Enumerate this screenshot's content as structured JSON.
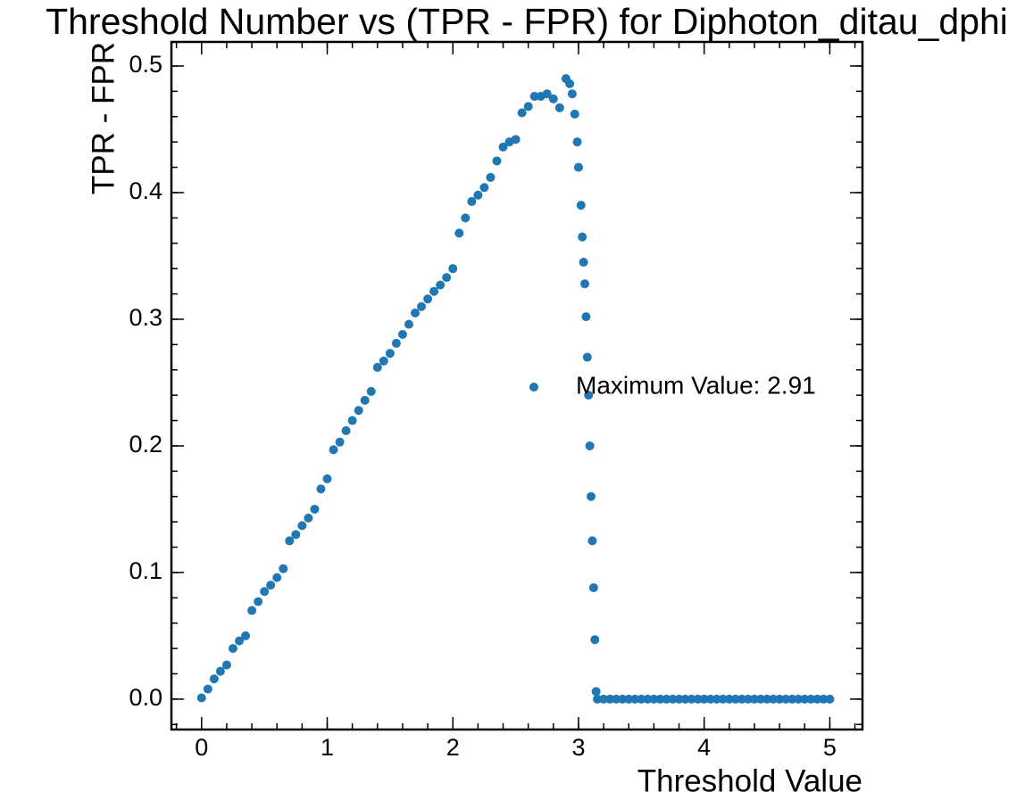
{
  "chart_data": {
    "type": "scatter",
    "title": "Threshold Number vs (TPR - FPR) for Diphoton_ditau_dphi",
    "x_label": "Threshold Value",
    "y_label": "TPR - FPR",
    "x": [
      0,
      0.05,
      0.1,
      0.15,
      0.2,
      0.25,
      0.3,
      0.35,
      0.4,
      0.45,
      0.5,
      0.55,
      0.6,
      0.65,
      0.7,
      0.75,
      0.8,
      0.85,
      0.9,
      0.95,
      1.0,
      1.05,
      1.1,
      1.15,
      1.2,
      1.25,
      1.3,
      1.35,
      1.4,
      1.45,
      1.5,
      1.55,
      1.6,
      1.65,
      1.7,
      1.75,
      1.8,
      1.85,
      1.9,
      1.95,
      2.0,
      2.05,
      2.1,
      2.15,
      2.2,
      2.25,
      2.3,
      2.35,
      2.4,
      2.45,
      2.5,
      2.55,
      2.6,
      2.65,
      2.7,
      2.75,
      2.8,
      2.85,
      2.9,
      2.93,
      2.95,
      2.97,
      2.99,
      3.0,
      3.02,
      3.03,
      3.04,
      3.05,
      3.06,
      3.07,
      3.08,
      3.09,
      3.1,
      3.11,
      3.12,
      3.13,
      3.14,
      3.15,
      3.2,
      3.25,
      3.3,
      3.35,
      3.4,
      3.45,
      3.5,
      3.55,
      3.6,
      3.65,
      3.7,
      3.75,
      3.8,
      3.85,
      3.9,
      3.95,
      4.0,
      4.05,
      4.1,
      4.15,
      4.2,
      4.25,
      4.3,
      4.35,
      4.4,
      4.45,
      4.5,
      4.55,
      4.6,
      4.65,
      4.7,
      4.75,
      4.8,
      4.85,
      4.9,
      4.95,
      5.0
    ],
    "series": [
      {
        "name": "Maximum Value: 2.91",
        "color": "#1f77b4",
        "values": [
          0.001,
          0.008,
          0.016,
          0.022,
          0.027,
          0.04,
          0.046,
          0.05,
          0.07,
          0.077,
          0.085,
          0.09,
          0.096,
          0.103,
          0.125,
          0.13,
          0.137,
          0.143,
          0.15,
          0.166,
          0.174,
          0.197,
          0.203,
          0.212,
          0.22,
          0.228,
          0.236,
          0.243,
          0.262,
          0.267,
          0.273,
          0.281,
          0.288,
          0.296,
          0.305,
          0.31,
          0.316,
          0.322,
          0.327,
          0.333,
          0.34,
          0.368,
          0.38,
          0.393,
          0.398,
          0.404,
          0.412,
          0.425,
          0.436,
          0.44,
          0.442,
          0.463,
          0.468,
          0.476,
          0.476,
          0.478,
          0.474,
          0.467,
          0.49,
          0.486,
          0.478,
          0.462,
          0.44,
          0.42,
          0.39,
          0.365,
          0.345,
          0.328,
          0.302,
          0.27,
          0.24,
          0.2,
          0.16,
          0.125,
          0.088,
          0.047,
          0.006,
          0,
          0,
          0,
          0,
          0,
          0,
          0,
          0,
          0,
          0,
          0,
          0,
          0,
          0,
          0,
          0,
          0,
          0,
          0,
          0,
          0,
          0,
          0,
          0,
          0,
          0,
          0,
          0,
          0,
          0,
          0,
          0,
          0,
          0,
          0,
          0,
          0,
          0
        ]
      }
    ],
    "xlim": [
      -0.24,
      5.26
    ],
    "ylim": [
      -0.024,
      0.519
    ],
    "xticks": [
      0,
      1,
      2,
      3,
      4,
      5
    ],
    "yticks": [
      {
        "value": 0,
        "label": "0.0"
      },
      0.1,
      0.2,
      0.3,
      0.4,
      0.5
    ]
  }
}
